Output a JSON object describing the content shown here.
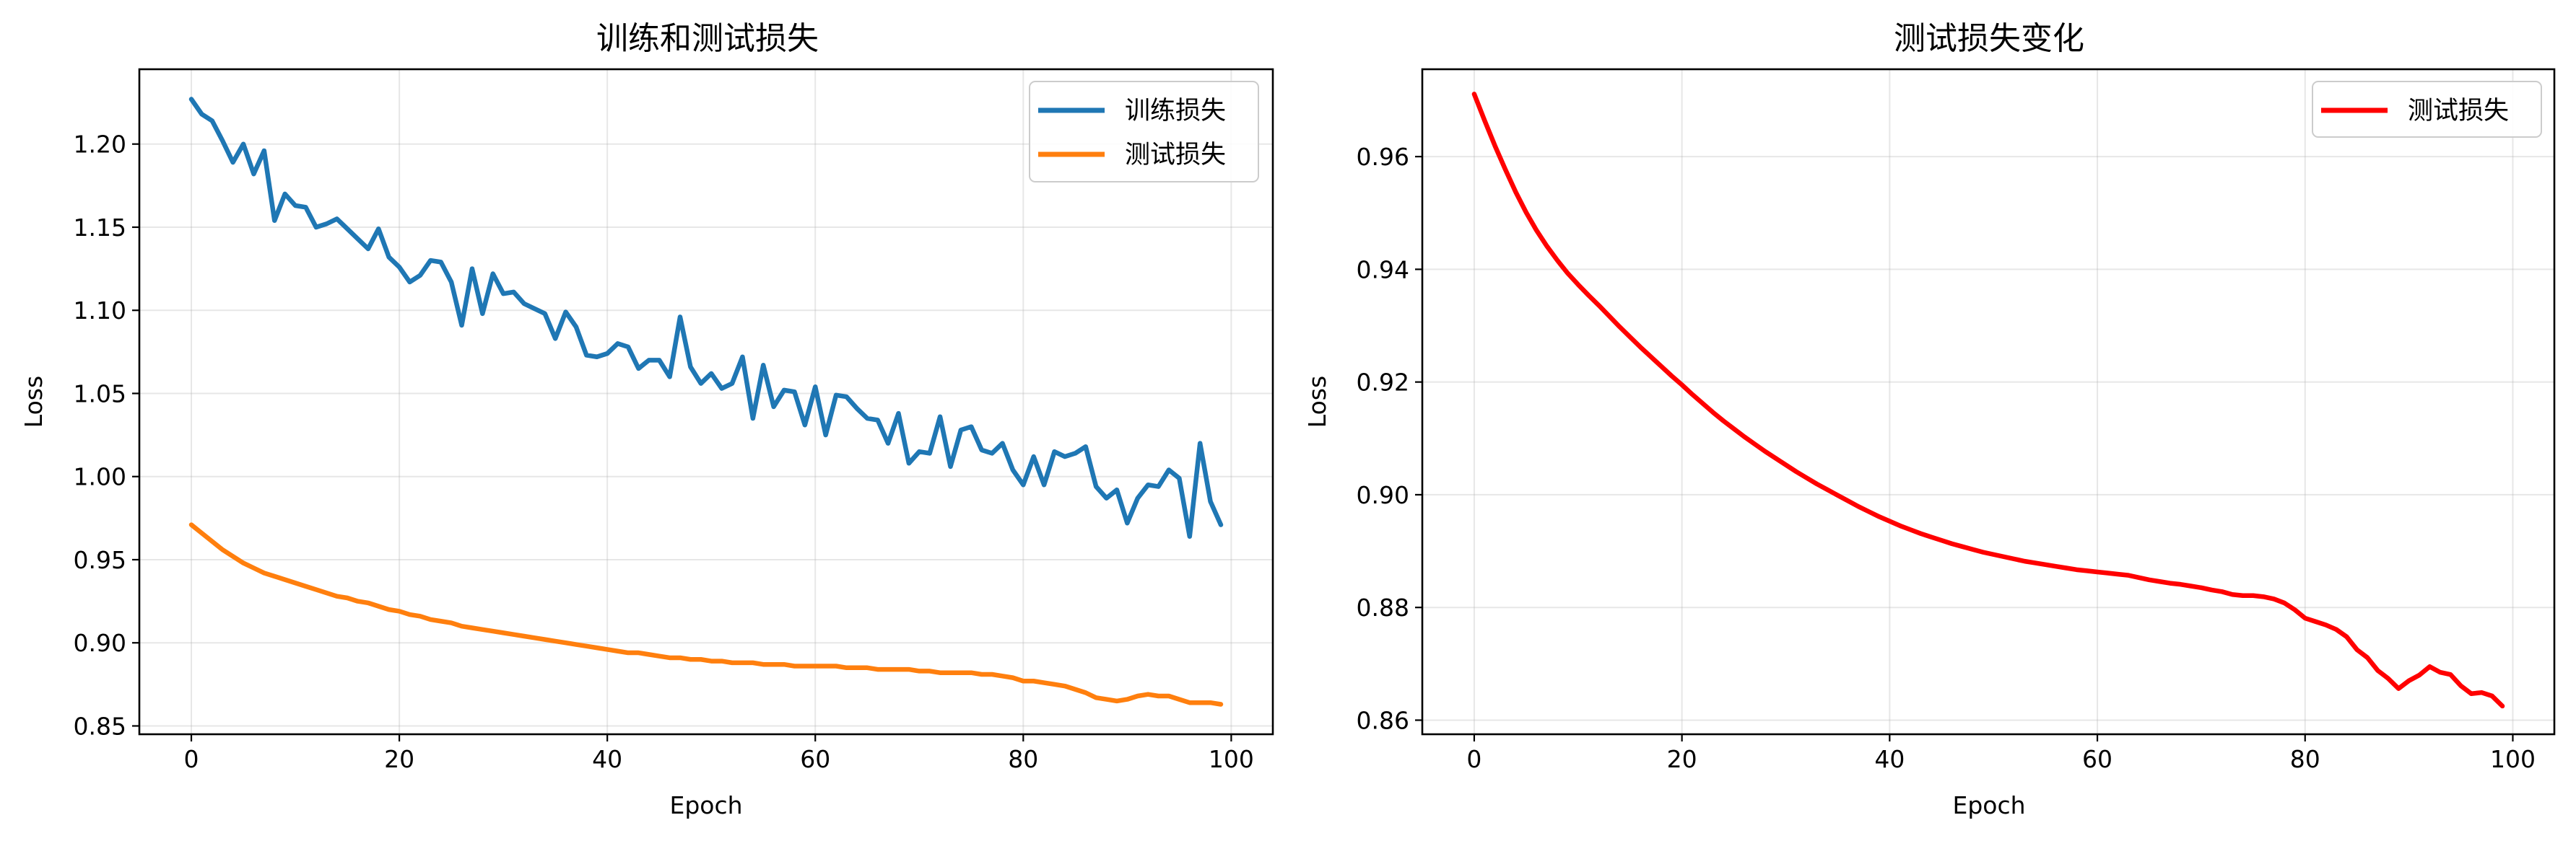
{
  "chart_data": [
    {
      "type": "line",
      "title": "训练和测试损失",
      "xlabel": "Epoch",
      "ylabel": "Loss",
      "xlim": [
        -5,
        104
      ],
      "ylim": [
        0.845,
        1.245
      ],
      "xticks": [
        0,
        20,
        40,
        60,
        80,
        100
      ],
      "xtick_labels": [
        "0",
        "20",
        "40",
        "60",
        "80",
        "100"
      ],
      "yticks": [
        0.85,
        0.9,
        0.95,
        1.0,
        1.05,
        1.1,
        1.15,
        1.2
      ],
      "ytick_labels": [
        "0.85",
        "0.90",
        "0.95",
        "1.00",
        "1.05",
        "1.10",
        "1.15",
        "1.20"
      ],
      "grid": true,
      "legend_position": "top-right",
      "series": [
        {
          "name": "训练损失",
          "color": "#1f77b4",
          "x": [
            0,
            1,
            2,
            3,
            4,
            5,
            6,
            7,
            8,
            9,
            10,
            11,
            12,
            13,
            14,
            15,
            16,
            17,
            18,
            19,
            20,
            21,
            22,
            23,
            24,
            25,
            26,
            27,
            28,
            29,
            30,
            31,
            32,
            33,
            34,
            35,
            36,
            37,
            38,
            39,
            40,
            41,
            42,
            43,
            44,
            45,
            46,
            47,
            48,
            49,
            50,
            51,
            52,
            53,
            54,
            55,
            56,
            57,
            58,
            59,
            60,
            61,
            62,
            63,
            64,
            65,
            66,
            67,
            68,
            69,
            70,
            71,
            72,
            73,
            74,
            75,
            76,
            77,
            78,
            79,
            80,
            81,
            82,
            83,
            84,
            85,
            86,
            87,
            88,
            89,
            90,
            91,
            92,
            93,
            94,
            95,
            96,
            97,
            98,
            99
          ],
          "y": [
            1.227,
            1.218,
            1.214,
            1.202,
            1.189,
            1.2,
            1.182,
            1.196,
            1.154,
            1.17,
            1.163,
            1.162,
            1.15,
            1.152,
            1.155,
            1.149,
            1.143,
            1.137,
            1.149,
            1.132,
            1.126,
            1.117,
            1.121,
            1.13,
            1.129,
            1.117,
            1.091,
            1.125,
            1.098,
            1.122,
            1.11,
            1.111,
            1.104,
            1.101,
            1.098,
            1.083,
            1.099,
            1.09,
            1.073,
            1.072,
            1.074,
            1.08,
            1.078,
            1.065,
            1.07,
            1.07,
            1.06,
            1.096,
            1.066,
            1.056,
            1.062,
            1.053,
            1.056,
            1.072,
            1.035,
            1.067,
            1.042,
            1.052,
            1.051,
            1.031,
            1.054,
            1.025,
            1.049,
            1.048,
            1.041,
            1.035,
            1.034,
            1.02,
            1.038,
            1.008,
            1.015,
            1.014,
            1.036,
            1.006,
            1.028,
            1.03,
            1.016,
            1.014,
            1.02,
            1.004,
            0.995,
            1.012,
            0.995,
            1.015,
            1.012,
            1.014,
            1.018,
            0.994,
            0.987,
            0.992,
            0.972,
            0.987,
            0.995,
            0.994,
            1.004,
            0.999,
            0.964,
            1.02,
            0.985,
            0.971
          ]
        },
        {
          "name": "测试损失",
          "color": "#ff7f0e",
          "x": [
            0,
            1,
            2,
            3,
            4,
            5,
            6,
            7,
            8,
            9,
            10,
            11,
            12,
            13,
            14,
            15,
            16,
            17,
            18,
            19,
            20,
            21,
            22,
            23,
            24,
            25,
            26,
            27,
            28,
            29,
            30,
            31,
            32,
            33,
            34,
            35,
            36,
            37,
            38,
            39,
            40,
            41,
            42,
            43,
            44,
            45,
            46,
            47,
            48,
            49,
            50,
            51,
            52,
            53,
            54,
            55,
            56,
            57,
            58,
            59,
            60,
            61,
            62,
            63,
            64,
            65,
            66,
            67,
            68,
            69,
            70,
            71,
            72,
            73,
            74,
            75,
            76,
            77,
            78,
            79,
            80,
            81,
            82,
            83,
            84,
            85,
            86,
            87,
            88,
            89,
            90,
            91,
            92,
            93,
            94,
            95,
            96,
            97,
            98,
            99
          ],
          "y": [
            0.971,
            0.966,
            0.961,
            0.956,
            0.952,
            0.948,
            0.945,
            0.942,
            0.94,
            0.938,
            0.936,
            0.934,
            0.932,
            0.93,
            0.928,
            0.927,
            0.925,
            0.924,
            0.922,
            0.92,
            0.919,
            0.917,
            0.916,
            0.914,
            0.913,
            0.912,
            0.91,
            0.909,
            0.908,
            0.907,
            0.906,
            0.905,
            0.904,
            0.903,
            0.902,
            0.901,
            0.9,
            0.899,
            0.898,
            0.897,
            0.896,
            0.895,
            0.894,
            0.894,
            0.893,
            0.892,
            0.891,
            0.891,
            0.89,
            0.89,
            0.889,
            0.889,
            0.888,
            0.888,
            0.888,
            0.887,
            0.887,
            0.887,
            0.886,
            0.886,
            0.886,
            0.886,
            0.886,
            0.885,
            0.885,
            0.885,
            0.884,
            0.884,
            0.884,
            0.884,
            0.883,
            0.883,
            0.882,
            0.882,
            0.882,
            0.882,
            0.881,
            0.881,
            0.88,
            0.879,
            0.877,
            0.877,
            0.876,
            0.875,
            0.874,
            0.872,
            0.87,
            0.867,
            0.866,
            0.865,
            0.866,
            0.868,
            0.869,
            0.868,
            0.868,
            0.866,
            0.864,
            0.864,
            0.864,
            0.863
          ]
        }
      ]
    },
    {
      "type": "line",
      "title": "测试损失变化",
      "xlabel": "Epoch",
      "ylabel": "Loss",
      "xlim": [
        -5,
        104
      ],
      "ylim": [
        0.8575,
        0.9755
      ],
      "xticks": [
        0,
        20,
        40,
        60,
        80,
        100
      ],
      "xtick_labels": [
        "0",
        "20",
        "40",
        "60",
        "80",
        "100"
      ],
      "yticks": [
        0.86,
        0.88,
        0.9,
        0.92,
        0.94,
        0.96
      ],
      "ytick_labels": [
        "0.86",
        "0.88",
        "0.90",
        "0.92",
        "0.94",
        "0.96"
      ],
      "grid": true,
      "legend_position": "top-right",
      "series": [
        {
          "name": "测试损失",
          "color": "#ff0000",
          "x": [
            0,
            1,
            2,
            3,
            4,
            5,
            6,
            7,
            8,
            9,
            10,
            11,
            12,
            13,
            14,
            15,
            16,
            17,
            18,
            19,
            20,
            21,
            22,
            23,
            24,
            25,
            26,
            27,
            28,
            29,
            30,
            31,
            32,
            33,
            34,
            35,
            36,
            37,
            38,
            39,
            40,
            41,
            42,
            43,
            44,
            45,
            46,
            47,
            48,
            49,
            50,
            51,
            52,
            53,
            54,
            55,
            56,
            57,
            58,
            59,
            60,
            61,
            62,
            63,
            64,
            65,
            66,
            67,
            68,
            69,
            70,
            71,
            72,
            73,
            74,
            75,
            76,
            77,
            78,
            79,
            80,
            81,
            82,
            83,
            84,
            85,
            86,
            87,
            88,
            89,
            90,
            91,
            92,
            93,
            94,
            95,
            96,
            97,
            98,
            99
          ],
          "y": [
            0.9711,
            0.9664,
            0.9619,
            0.9577,
            0.9537,
            0.9501,
            0.9469,
            0.9441,
            0.9416,
            0.9393,
            0.9373,
            0.9354,
            0.9336,
            0.9317,
            0.9298,
            0.928,
            0.9262,
            0.9245,
            0.9228,
            0.9211,
            0.9195,
            0.9178,
            0.9162,
            0.9146,
            0.9131,
            0.9117,
            0.9103,
            0.909,
            0.9077,
            0.9065,
            0.9053,
            0.9041,
            0.903,
            0.9019,
            0.9009,
            0.8999,
            0.8989,
            0.8979,
            0.897,
            0.8961,
            0.8953,
            0.8945,
            0.8938,
            0.8931,
            0.8925,
            0.8919,
            0.8913,
            0.8908,
            0.8903,
            0.8898,
            0.8894,
            0.889,
            0.8886,
            0.8882,
            0.8879,
            0.8876,
            0.8873,
            0.887,
            0.8867,
            0.8865,
            0.8863,
            0.8861,
            0.8859,
            0.8857,
            0.8853,
            0.8849,
            0.8846,
            0.8843,
            0.8841,
            0.8838,
            0.8835,
            0.8831,
            0.8828,
            0.8823,
            0.8821,
            0.8821,
            0.8819,
            0.8815,
            0.8808,
            0.8796,
            0.8781,
            0.8775,
            0.8769,
            0.8761,
            0.8748,
            0.8725,
            0.8711,
            0.8688,
            0.8674,
            0.8656,
            0.867,
            0.868,
            0.8695,
            0.8685,
            0.8681,
            0.8661,
            0.8647,
            0.8649,
            0.8643,
            0.8625
          ]
        }
      ]
    }
  ]
}
